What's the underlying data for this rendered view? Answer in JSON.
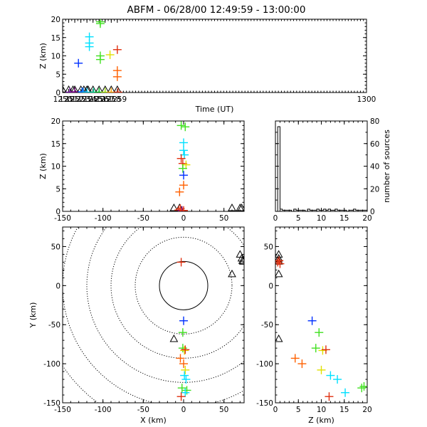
{
  "chart_data": {
    "type": "scatter",
    "title": "ABFM - 06/28/00 12:49:59 - 13:00:00",
    "marker": "+",
    "station_marker": "triangle",
    "panels": [
      {
        "id": "time-height",
        "type": "scatter",
        "xlabel": "Time (UT)",
        "ylabel": "Z (km)",
        "xlim": [
          1250,
          1300
        ],
        "ylim": [
          0,
          20
        ],
        "xticks": [
          "1250",
          "1251",
          "1252",
          "1253",
          "1254",
          "1255",
          "1256",
          "1257",
          "1258",
          "1259",
          "1300"
        ],
        "yticks": [
          "0",
          "5",
          "10",
          "15",
          "20"
        ],
        "points": [
          {
            "x": 1250.0,
            "y": 0.1,
            "c": "#000000"
          },
          {
            "x": 1251.2,
            "y": 0.1,
            "c": "#6a00a0"
          },
          {
            "x": 1252.0,
            "y": 0.2,
            "c": "#7a0080"
          },
          {
            "x": 1252.6,
            "y": 8.0,
            "c": "#0030ff"
          },
          {
            "x": 1253.2,
            "y": 0.2,
            "c": "#0060ff"
          },
          {
            "x": 1253.4,
            "y": 0.1,
            "c": "#0080ff"
          },
          {
            "x": 1254.0,
            "y": 0.1,
            "c": "#00c0e0"
          },
          {
            "x": 1254.4,
            "y": 15.2,
            "c": "#00e0ff"
          },
          {
            "x": 1254.4,
            "y": 13.5,
            "c": "#00e0ff"
          },
          {
            "x": 1254.4,
            "y": 12.5,
            "c": "#00e0ff"
          },
          {
            "x": 1255.1,
            "y": 0.1,
            "c": "#00e0a0"
          },
          {
            "x": 1256.0,
            "y": 0.1,
            "c": "#00c020"
          },
          {
            "x": 1256.2,
            "y": 19.3,
            "c": "#40e020"
          },
          {
            "x": 1256.2,
            "y": 18.8,
            "c": "#40e020"
          },
          {
            "x": 1256.2,
            "y": 10.0,
            "c": "#40e020"
          },
          {
            "x": 1256.2,
            "y": 9.0,
            "c": "#40e020"
          },
          {
            "x": 1257.0,
            "y": 0.1,
            "c": "#a0e000"
          },
          {
            "x": 1257.8,
            "y": 10.3,
            "c": "#e0e000"
          },
          {
            "x": 1258.0,
            "y": 0.1,
            "c": "#ffa000"
          },
          {
            "x": 1259.0,
            "y": 11.7,
            "c": "#e03010"
          },
          {
            "x": 1259.0,
            "y": 6.0,
            "c": "#ff6000"
          },
          {
            "x": 1259.0,
            "y": 4.3,
            "c": "#ff6000"
          },
          {
            "x": 1259.1,
            "y": 0.1,
            "c": "#e03010"
          }
        ],
        "stations_x": [
          1250.0,
          1251.0,
          1251.7,
          1252.0,
          1253.0,
          1253.5,
          1254.0,
          1254.2,
          1255.0,
          1256.0,
          1257.0,
          1258.0,
          1259.0
        ]
      },
      {
        "id": "x-z",
        "type": "scatter",
        "xlabel": "",
        "ylabel": "Z (km)",
        "xlim": [
          -150,
          75
        ],
        "ylim": [
          0,
          20
        ],
        "xticks": [
          "-150",
          "-100",
          "-50",
          "0",
          "50"
        ],
        "yticks": [
          "0",
          "5",
          "10",
          "15",
          "20"
        ],
        "points": [
          {
            "x": -3,
            "y": 19.0,
            "c": "#40e020"
          },
          {
            "x": 2,
            "y": 18.7,
            "c": "#40e020"
          },
          {
            "x": 0,
            "y": 15.2,
            "c": "#00e0ff"
          },
          {
            "x": 0,
            "y": 13.5,
            "c": "#00e0ff"
          },
          {
            "x": 1,
            "y": 12.5,
            "c": "#00e0ff"
          },
          {
            "x": -3,
            "y": 11.7,
            "c": "#e03010"
          },
          {
            "x": -1,
            "y": 10.6,
            "c": "#e03010"
          },
          {
            "x": 3,
            "y": 10.3,
            "c": "#e0e000"
          },
          {
            "x": -1,
            "y": 9.5,
            "c": "#40e020"
          },
          {
            "x": 0,
            "y": 8.0,
            "c": "#0030ff"
          },
          {
            "x": 0,
            "y": 5.8,
            "c": "#ff6000"
          },
          {
            "x": -5,
            "y": 4.3,
            "c": "#ff6000"
          },
          {
            "x": -6,
            "y": 0.3,
            "c": "#e03010"
          },
          {
            "x": -4,
            "y": 0.6,
            "c": "#e03010"
          },
          {
            "x": -2,
            "y": 0.2,
            "c": "#7a0080"
          },
          {
            "x": 0,
            "y": 0.2,
            "c": "#e03010"
          }
        ],
        "stations_x": [
          -12,
          -5,
          60,
          70,
          72
        ]
      },
      {
        "id": "histogram",
        "type": "bar",
        "xlabel": "",
        "ylabel": "number of sources",
        "xlim": [
          0,
          20
        ],
        "ylim": [
          0,
          80
        ],
        "xticks": [
          "0",
          "5",
          "10",
          "15",
          "20"
        ],
        "yticks": [
          "0",
          "20",
          "40",
          "60",
          "80"
        ],
        "bin_width": 0.5,
        "values": [
          0,
          75,
          2,
          1,
          1,
          1,
          1,
          0,
          2,
          1,
          1,
          1,
          1,
          0,
          2,
          1,
          1,
          1,
          2,
          1,
          1,
          2,
          1,
          2,
          1,
          1,
          2,
          1,
          1,
          1,
          1,
          0,
          1,
          1,
          2,
          1,
          1,
          1,
          1,
          1
        ]
      },
      {
        "id": "plan-view",
        "type": "scatter",
        "xlabel": "X (km)",
        "ylabel": "Y (km)",
        "xlim": [
          -150,
          75
        ],
        "ylim": [
          -150,
          75
        ],
        "xticks": [
          "-150",
          "-100",
          "-50",
          "0",
          "50"
        ],
        "yticks": [
          "-150",
          "-100",
          "-50",
          "0",
          "50"
        ],
        "range_rings_km": [
          30,
          60,
          90,
          120,
          150,
          180
        ],
        "points": [
          {
            "x": -3,
            "y": 30,
            "c": "#e03010"
          },
          {
            "x": 0,
            "y": -45,
            "c": "#0030ff"
          },
          {
            "x": -1,
            "y": -60,
            "c": "#40e020"
          },
          {
            "x": -1,
            "y": -80,
            "c": "#40e020"
          },
          {
            "x": 1,
            "y": -83,
            "c": "#e0e000"
          },
          {
            "x": 2,
            "y": -82,
            "c": "#e03010"
          },
          {
            "x": -4,
            "y": -93,
            "c": "#ff6000"
          },
          {
            "x": 0,
            "y": -100,
            "c": "#ff6000"
          },
          {
            "x": 2,
            "y": -108,
            "c": "#e0e000"
          },
          {
            "x": 1,
            "y": -115,
            "c": "#00e0ff"
          },
          {
            "x": 3,
            "y": -120,
            "c": "#00e0ff"
          },
          {
            "x": -2,
            "y": -131,
            "c": "#40e020"
          },
          {
            "x": 4,
            "y": -134,
            "c": "#40e020"
          },
          {
            "x": 2,
            "y": -137,
            "c": "#00e0ff"
          },
          {
            "x": -3,
            "y": -142,
            "c": "#e03010"
          }
        ],
        "stations": [
          [
            -12,
            -68
          ],
          [
            60,
            15
          ],
          [
            70,
            40
          ],
          [
            72,
            35
          ],
          [
            73,
            32
          ],
          [
            74,
            31
          ]
        ]
      },
      {
        "id": "z-y",
        "type": "scatter",
        "xlabel": "Z (km)",
        "ylabel": "",
        "xlim": [
          0,
          20
        ],
        "ylim": [
          -150,
          75
        ],
        "xticks": [
          "0",
          "5",
          "10",
          "15",
          "20"
        ],
        "yticks": [
          "-150",
          "-100",
          "-50",
          "0",
          "50"
        ],
        "points": [
          {
            "x": 0.5,
            "y": 30,
            "c": "#e03010"
          },
          {
            "x": 0.8,
            "y": 32,
            "c": "#e03010"
          },
          {
            "x": 1.0,
            "y": 28,
            "c": "#e03010"
          },
          {
            "x": 8.0,
            "y": -45,
            "c": "#0030ff"
          },
          {
            "x": 9.5,
            "y": -60,
            "c": "#40e020"
          },
          {
            "x": 8.8,
            "y": -80,
            "c": "#40e020"
          },
          {
            "x": 10.3,
            "y": -83,
            "c": "#e0e000"
          },
          {
            "x": 11.0,
            "y": -82,
            "c": "#e03010"
          },
          {
            "x": 4.3,
            "y": -93,
            "c": "#ff6000"
          },
          {
            "x": 5.8,
            "y": -100,
            "c": "#ff6000"
          },
          {
            "x": 10.0,
            "y": -108,
            "c": "#e0e000"
          },
          {
            "x": 12.0,
            "y": -115,
            "c": "#00e0ff"
          },
          {
            "x": 13.5,
            "y": -120,
            "c": "#00e0ff"
          },
          {
            "x": 15.2,
            "y": -137,
            "c": "#00e0ff"
          },
          {
            "x": 18.8,
            "y": -131,
            "c": "#40e020"
          },
          {
            "x": 19.3,
            "y": -129,
            "c": "#40e020"
          },
          {
            "x": 11.7,
            "y": -142,
            "c": "#e03010"
          }
        ],
        "stations": [
          [
            0.1,
            40
          ],
          [
            0.1,
            35
          ],
          [
            0.1,
            32
          ],
          [
            0.1,
            31
          ],
          [
            0.1,
            15
          ],
          [
            0.1,
            -68
          ]
        ]
      }
    ]
  }
}
